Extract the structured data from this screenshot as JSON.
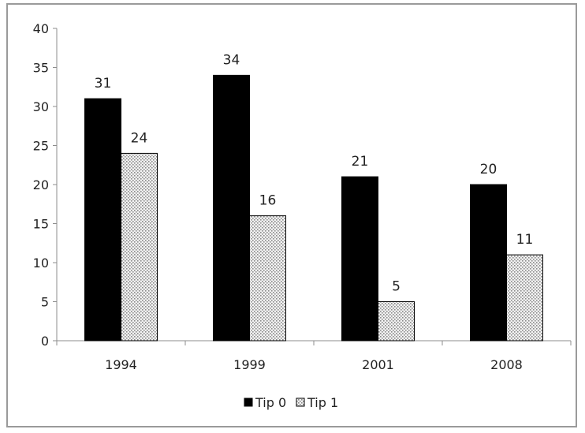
{
  "chart_data": {
    "type": "bar",
    "title": "",
    "xlabel": "",
    "ylabel": "",
    "categories": [
      "1994",
      "1999",
      "2001",
      "2008"
    ],
    "series": [
      {
        "name": "Tip 0",
        "values": [
          31,
          34,
          21,
          20
        ],
        "color": "#000000",
        "pattern": "solid"
      },
      {
        "name": "Tip 1",
        "values": [
          24,
          16,
          5,
          11
        ],
        "color": "#d9d9d9",
        "pattern": "dotted"
      }
    ],
    "ylim": [
      0,
      40
    ],
    "yticks": [
      "0",
      "5",
      "10",
      "15",
      "20",
      "25",
      "30",
      "35",
      "40"
    ],
    "grid": false,
    "legend_position": "bottom"
  }
}
